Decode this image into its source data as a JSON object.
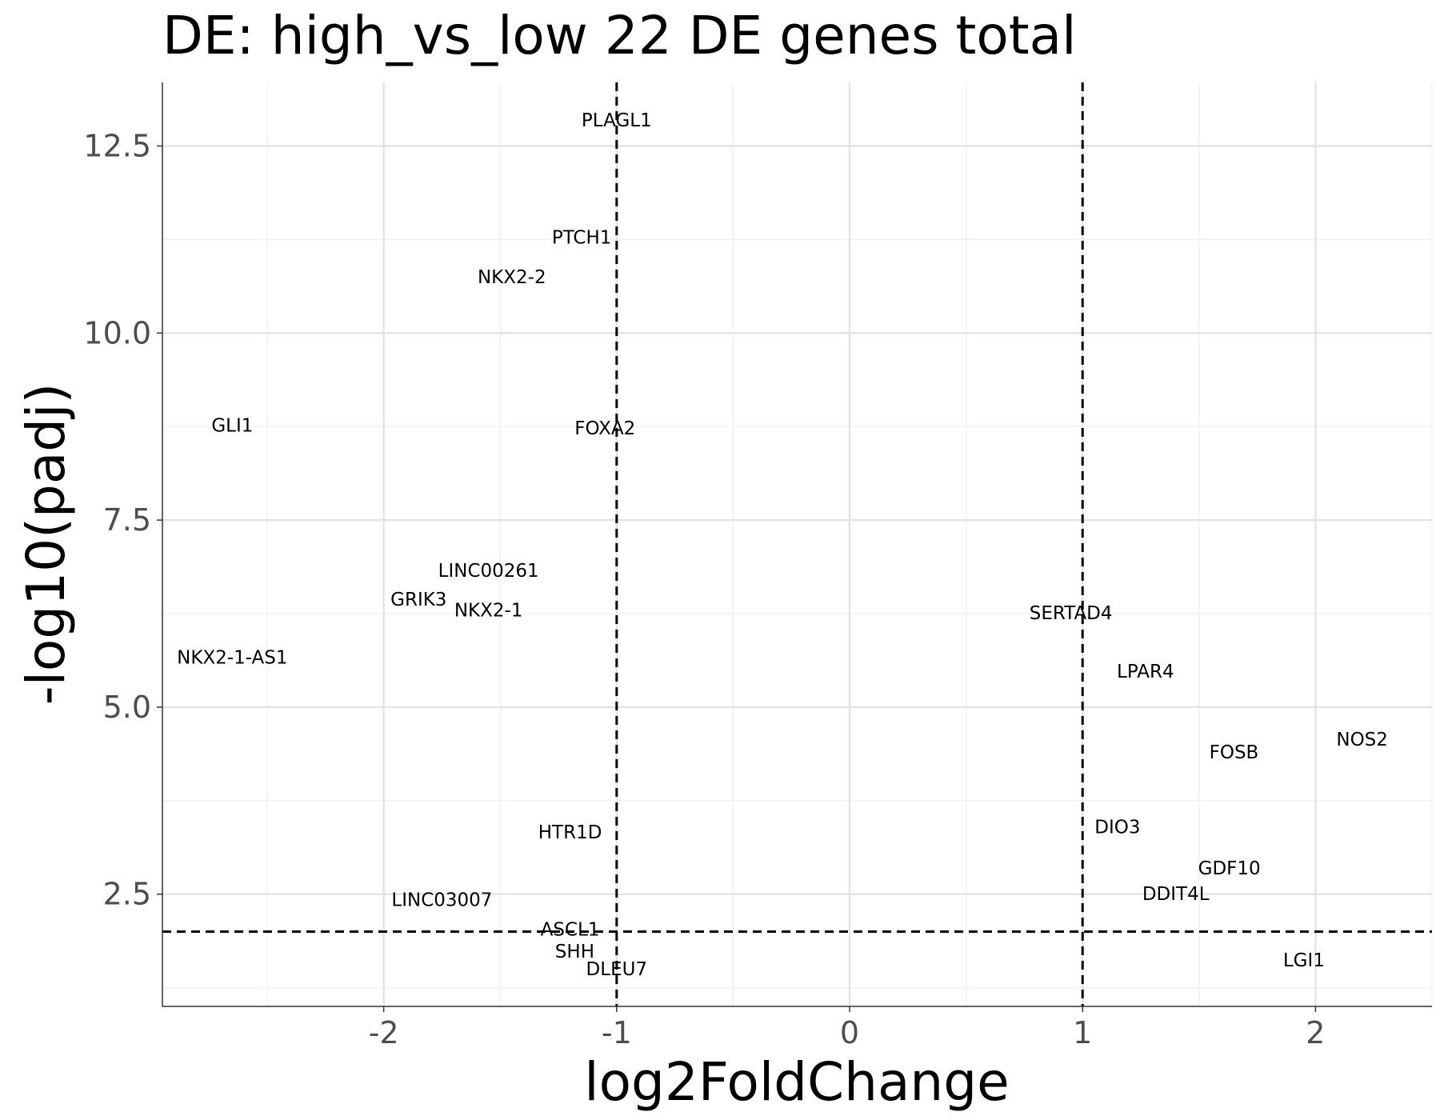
{
  "chart_data": {
    "type": "scatter",
    "title": "DE: high_vs_low 22 DE genes total",
    "xlabel": "log2FoldChange",
    "ylabel": "-log10(padj)",
    "xlim": [
      -2.95,
      2.5
    ],
    "ylim": [
      1.0,
      13.35
    ],
    "x_ticks": [
      -2,
      -1,
      0,
      1,
      2
    ],
    "x_tick_labels": [
      "-2",
      "-1",
      "0",
      "1",
      "2"
    ],
    "y_ticks": [
      2.5,
      5.0,
      7.5,
      10.0,
      12.5
    ],
    "y_tick_labels": [
      "2.5",
      "5.0",
      "7.5",
      "10.0",
      "12.5"
    ],
    "grid": true,
    "thresholds": {
      "log2fc": [
        -1,
        1
      ],
      "neg_log10_padj": 2.0
    },
    "colors": {
      "grid_major": "#e3e3e3",
      "grid_minor": "#eeeeee",
      "axis": "#333333",
      "tick_label": "#4d4d4d",
      "text": "#000000"
    },
    "points": [
      {
        "label": "PLAGL1",
        "x": -1.0,
        "y": 12.85
      },
      {
        "label": "PTCH1",
        "x": -1.15,
        "y": 11.28
      },
      {
        "label": "NKX2-2",
        "x": -1.45,
        "y": 10.75
      },
      {
        "label": "GLI1",
        "x": -2.65,
        "y": 8.77
      },
      {
        "label": "FOXA2",
        "x": -1.05,
        "y": 8.73
      },
      {
        "label": "LINC00261",
        "x": -1.55,
        "y": 6.83
      },
      {
        "label": "GRIK3",
        "x": -1.85,
        "y": 6.44
      },
      {
        "label": "NKX2-1",
        "x": -1.55,
        "y": 6.3
      },
      {
        "label": "NKX2-1-AS1",
        "x": -2.65,
        "y": 5.67
      },
      {
        "label": "SERTAD4",
        "x": 0.95,
        "y": 6.26
      },
      {
        "label": "LPAR4",
        "x": 1.27,
        "y": 5.48
      },
      {
        "label": "NOS2",
        "x": 2.2,
        "y": 4.57
      },
      {
        "label": "FOSB",
        "x": 1.65,
        "y": 4.4
      },
      {
        "label": "HTR1D",
        "x": -1.2,
        "y": 3.33
      },
      {
        "label": "DIO3",
        "x": 1.15,
        "y": 3.4
      },
      {
        "label": "GDF10",
        "x": 1.63,
        "y": 2.85
      },
      {
        "label": "DDIT4L",
        "x": 1.4,
        "y": 2.51
      },
      {
        "label": "LINC03007",
        "x": -1.75,
        "y": 2.43
      },
      {
        "label": "ASCL1",
        "x": -1.2,
        "y": 2.03
      },
      {
        "label": "SHH",
        "x": -1.18,
        "y": 1.74
      },
      {
        "label": "DLEU7",
        "x": -1.0,
        "y": 1.5
      },
      {
        "label": "LGI1",
        "x": 1.95,
        "y": 1.62
      }
    ]
  }
}
